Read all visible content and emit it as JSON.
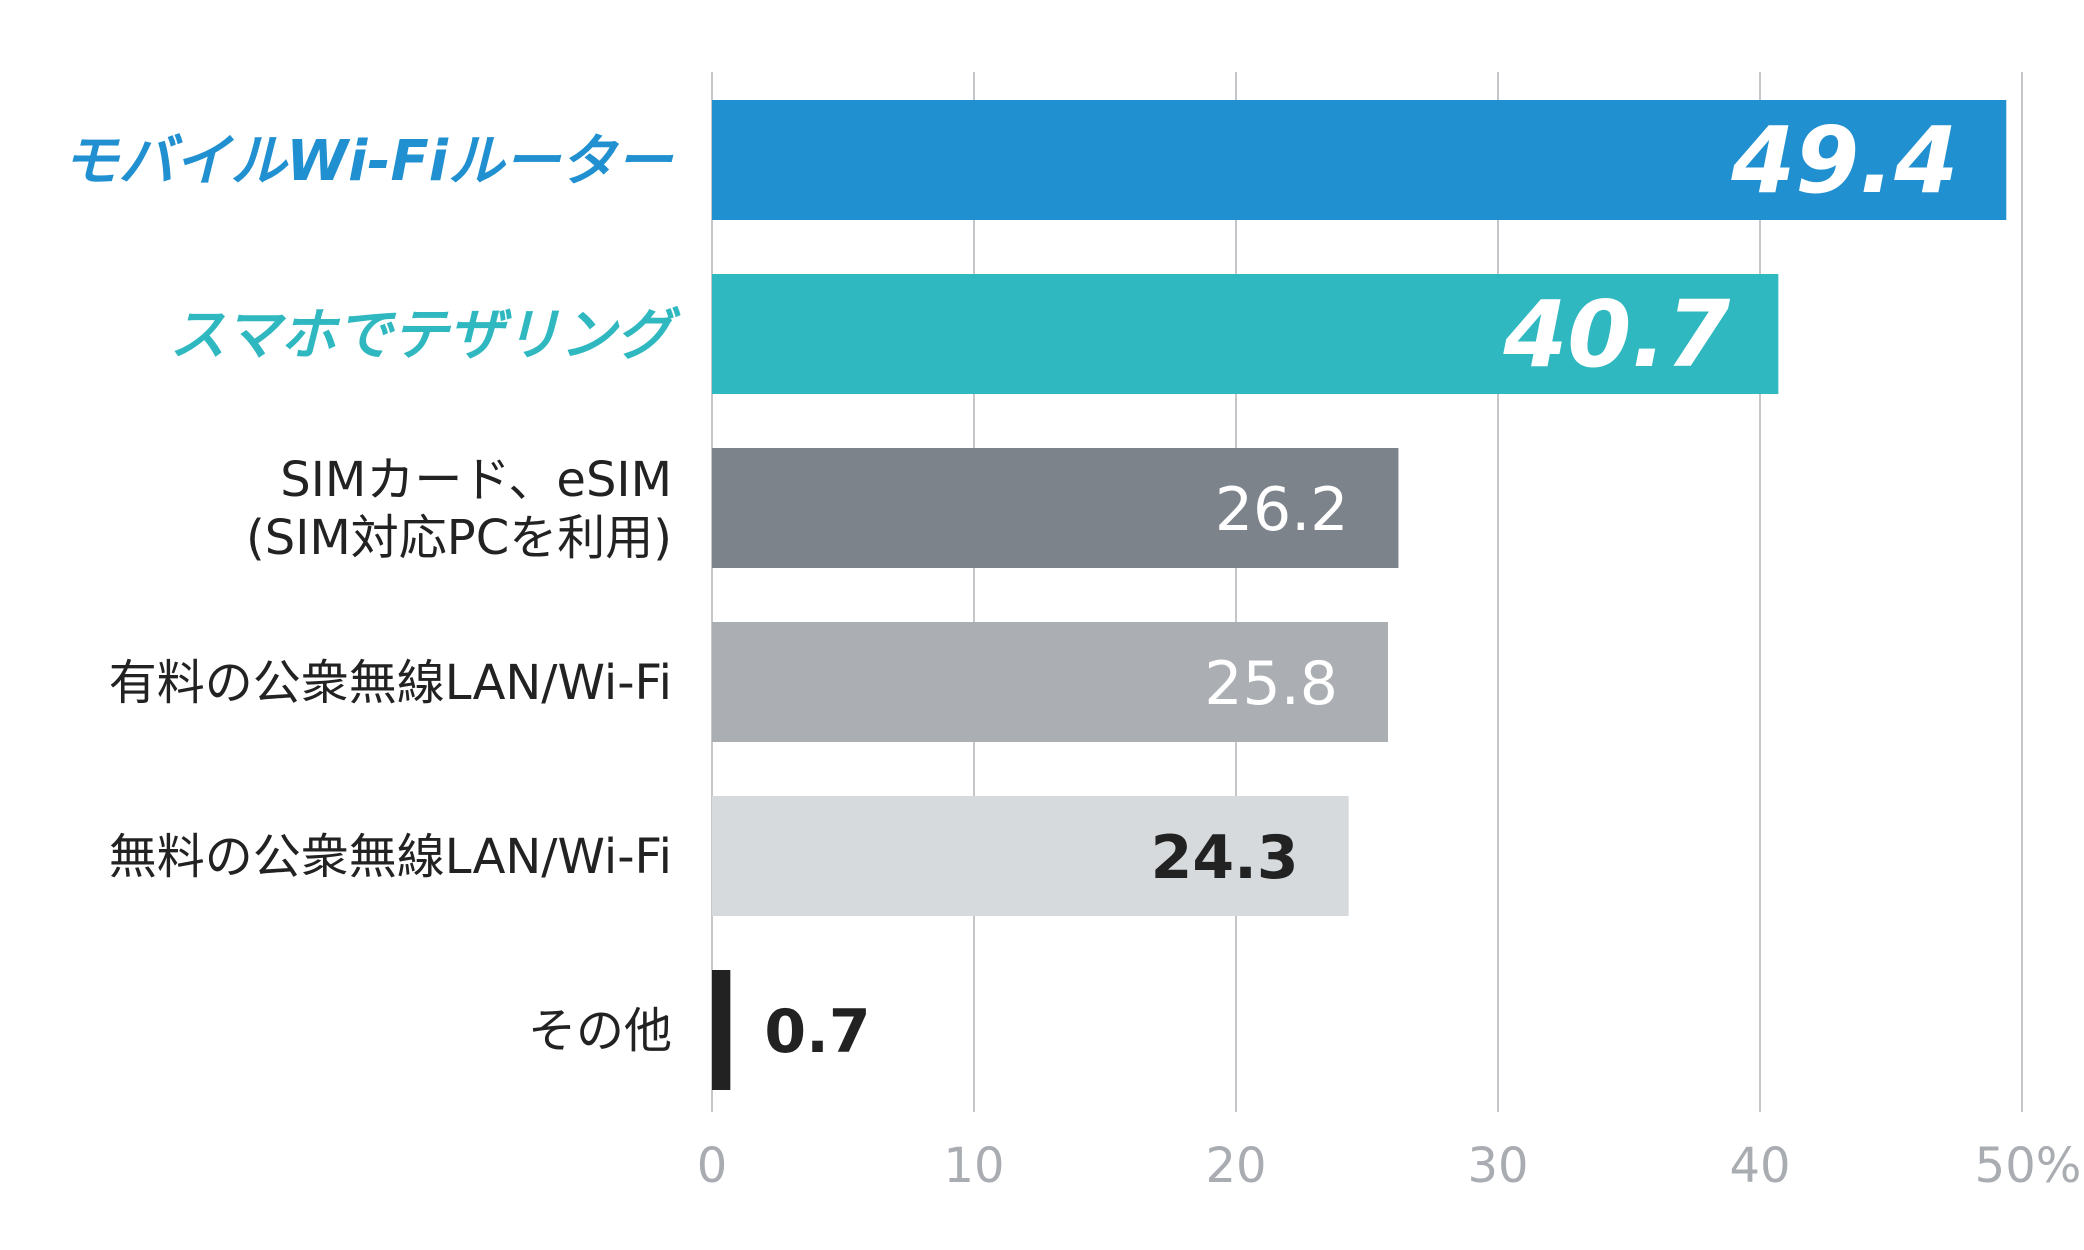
{
  "chart_data": {
    "type": "bar",
    "orientation": "horizontal",
    "categories": [
      "モバイルWi-Fiルーター",
      "スマホでテザリング",
      "SIMカード、eSIM\n(SIM対応PCを利用)",
      "有料の公衆無線LAN/Wi-Fi",
      "無料の公衆無線LAN/Wi-Fi",
      "その他"
    ],
    "values": [
      49.4,
      40.7,
      26.2,
      25.8,
      24.3,
      0.7
    ],
    "value_labels": [
      "49.4",
      "40.7",
      "26.2",
      "25.8",
      "24.3",
      "0.7"
    ],
    "bar_colors": [
      "#2190d0",
      "#30b8c0",
      "#7d838a",
      "#abaeb2",
      "#d7dadd",
      "#222222"
    ],
    "label_colors": [
      "#2190d0",
      "#30b8c0",
      "#222222",
      "#222222",
      "#222222",
      "#222222"
    ],
    "value_label_colors": [
      "#ffffff",
      "#ffffff",
      "#ffffff",
      "#ffffff",
      "#222222",
      "#222222"
    ],
    "xlim": [
      0,
      50
    ],
    "xticks": [
      0,
      10,
      20,
      30,
      40,
      50
    ],
    "xtick_labels": [
      "0",
      "10",
      "20",
      "30",
      "40",
      "50%"
    ],
    "grid": true,
    "title": "",
    "xlabel": "",
    "ylabel": ""
  }
}
